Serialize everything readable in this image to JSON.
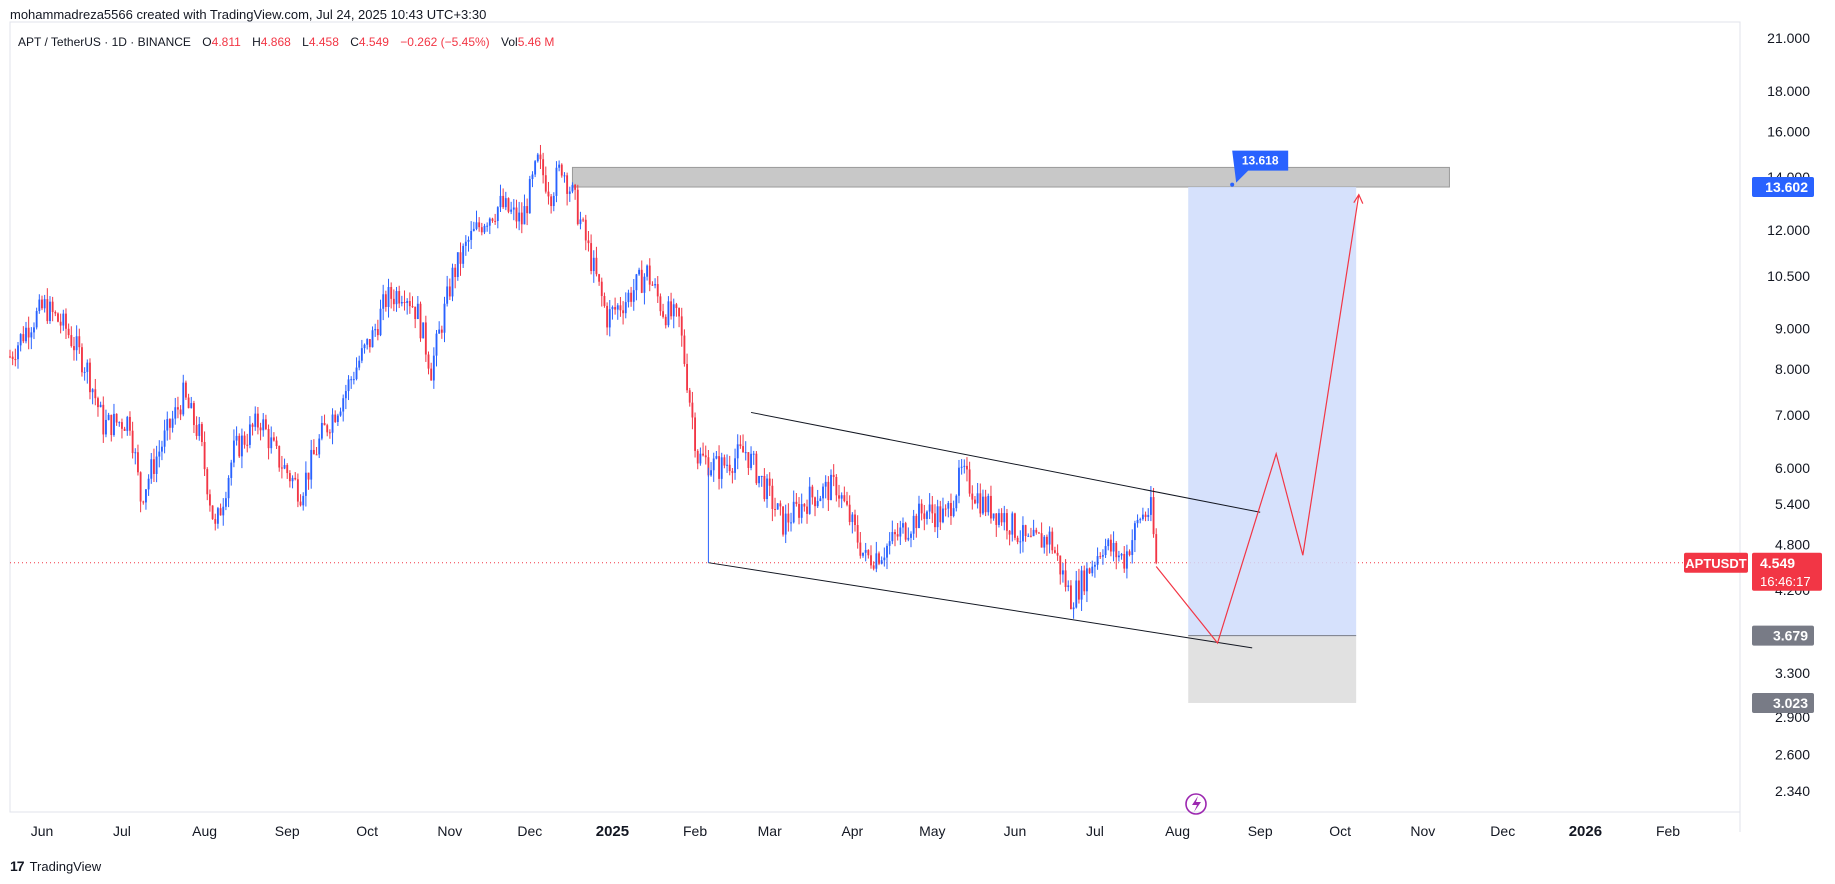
{
  "header": {
    "text": "mohammadreza5566 created with TradingView.com, Jul 24, 2025 10:43 UTC+3:30"
  },
  "legend": {
    "symbol": "APT / TetherUS · 1D · BINANCE",
    "o_label": "O",
    "o_value": "4.811",
    "h_label": "H",
    "h_value": "4.868",
    "l_label": "L",
    "l_value": "4.458",
    "c_label": "C",
    "c_value": "4.549",
    "change": "−0.262 (−5.45%)",
    "vol_label": "Vol",
    "vol_value": "5.46 M"
  },
  "footer": {
    "brand": "TradingView",
    "logo": "17"
  },
  "colors": {
    "up": "#2962ff",
    "down": "#f23645",
    "target_zone": "#cfdcfc",
    "stop_zone": "#e1e1e1",
    "resistance": "#c8c8c8",
    "projection": "#f23645",
    "label_blue": "#2962ff",
    "label_gray": "#787b86"
  },
  "chart_data": {
    "type": "candlestick",
    "symbol": "APTUSDT",
    "y_scale": "log",
    "ylim": [
      2.2,
      22.0
    ],
    "y_ticks": [
      2.34,
      2.6,
      2.9,
      3.3,
      3.679,
      4.2,
      4.8,
      5.4,
      6.0,
      7.0,
      8.0,
      9.0,
      10.5,
      12.0,
      14.0,
      16.0,
      18.0,
      21.0
    ],
    "y_tick_labels": [
      "2.340",
      "2.600",
      "2.900",
      "3.300",
      "",
      "4.200",
      "4.800",
      "5.400",
      "6.000",
      "7.000",
      "8.000",
      "9.000",
      "10.500",
      "12.000",
      "14.000",
      "16.000",
      "18.000",
      "21.000"
    ],
    "xlim": [
      "2024-05-20",
      "2026-02-28"
    ],
    "x_ticks": [
      {
        "date": "2024-06-01",
        "label": "Jun",
        "bold": false
      },
      {
        "date": "2024-07-01",
        "label": "Jul",
        "bold": false
      },
      {
        "date": "2024-08-01",
        "label": "Aug",
        "bold": false
      },
      {
        "date": "2024-09-01",
        "label": "Sep",
        "bold": false
      },
      {
        "date": "2024-10-01",
        "label": "Oct",
        "bold": false
      },
      {
        "date": "2024-11-01",
        "label": "Nov",
        "bold": false
      },
      {
        "date": "2024-12-01",
        "label": "Dec",
        "bold": false
      },
      {
        "date": "2025-01-01",
        "label": "2025",
        "bold": true
      },
      {
        "date": "2025-02-01",
        "label": "Feb",
        "bold": false
      },
      {
        "date": "2025-03-01",
        "label": "Mar",
        "bold": false
      },
      {
        "date": "2025-04-01",
        "label": "Apr",
        "bold": false
      },
      {
        "date": "2025-05-01",
        "label": "May",
        "bold": false
      },
      {
        "date": "2025-06-01",
        "label": "Jun",
        "bold": false
      },
      {
        "date": "2025-07-01",
        "label": "Jul",
        "bold": false
      },
      {
        "date": "2025-08-01",
        "label": "Aug",
        "bold": false
      },
      {
        "date": "2025-09-01",
        "label": "Sep",
        "bold": false
      },
      {
        "date": "2025-10-01",
        "label": "Oct",
        "bold": false
      },
      {
        "date": "2025-11-01",
        "label": "Nov",
        "bold": false
      },
      {
        "date": "2025-12-01",
        "label": "Dec",
        "bold": false
      },
      {
        "date": "2026-01-01",
        "label": "2026",
        "bold": true
      },
      {
        "date": "2026-02-01",
        "label": "Feb",
        "bold": false
      }
    ],
    "price_path": [
      [
        "2024-05-20",
        8.3
      ],
      [
        "2024-05-27",
        9.1
      ],
      [
        "2024-06-02",
        9.6
      ],
      [
        "2024-06-10",
        9.0
      ],
      [
        "2024-06-18",
        8.0
      ],
      [
        "2024-06-24",
        6.8
      ],
      [
        "2024-07-04",
        6.9
      ],
      [
        "2024-07-08",
        5.5
      ],
      [
        "2024-07-14",
        6.2
      ],
      [
        "2024-07-24",
        7.4
      ],
      [
        "2024-07-30",
        6.6
      ],
      [
        "2024-08-05",
        5.0
      ],
      [
        "2024-08-12",
        6.3
      ],
      [
        "2024-08-22",
        6.9
      ],
      [
        "2024-08-28",
        6.2
      ],
      [
        "2024-09-06",
        5.6
      ],
      [
        "2024-09-14",
        6.6
      ],
      [
        "2024-09-22",
        7.4
      ],
      [
        "2024-09-28",
        8.2
      ],
      [
        "2024-10-03",
        8.8
      ],
      [
        "2024-10-08",
        9.8
      ],
      [
        "2024-10-15",
        10.1
      ],
      [
        "2024-10-20",
        9.4
      ],
      [
        "2024-10-25",
        8.0
      ],
      [
        "2024-11-02",
        10.5
      ],
      [
        "2024-11-08",
        11.6
      ],
      [
        "2024-11-14",
        12.4
      ],
      [
        "2024-11-20",
        12.9
      ],
      [
        "2024-11-28",
        12.3
      ],
      [
        "2024-12-04",
        14.6
      ],
      [
        "2024-12-09",
        13.4
      ],
      [
        "2024-12-13",
        14.5
      ],
      [
        "2024-12-18",
        13.0
      ],
      [
        "2024-12-24",
        11.0
      ],
      [
        "2024-12-30",
        9.3
      ],
      [
        "2025-01-06",
        9.8
      ],
      [
        "2025-01-14",
        10.6
      ],
      [
        "2025-01-20",
        9.5
      ],
      [
        "2025-01-26",
        9.2
      ],
      [
        "2025-02-02",
        6.2
      ],
      [
        "2025-02-10",
        6.0
      ],
      [
        "2025-02-20",
        6.3
      ],
      [
        "2025-02-28",
        5.6
      ],
      [
        "2025-03-06",
        5.1
      ],
      [
        "2025-03-16",
        5.5
      ],
      [
        "2025-03-26",
        5.7
      ],
      [
        "2025-04-06",
        4.6
      ],
      [
        "2025-04-12",
        4.7
      ],
      [
        "2025-04-20",
        5.0
      ],
      [
        "2025-04-28",
        5.3
      ],
      [
        "2025-05-06",
        5.2
      ],
      [
        "2025-05-12",
        5.9
      ],
      [
        "2025-05-20",
        5.4
      ],
      [
        "2025-05-28",
        5.2
      ],
      [
        "2025-06-06",
        4.8
      ],
      [
        "2025-06-14",
        4.9
      ],
      [
        "2025-06-22",
        4.1
      ],
      [
        "2025-06-26",
        4.3
      ],
      [
        "2025-07-04",
        4.8
      ],
      [
        "2025-07-12",
        4.6
      ],
      [
        "2025-07-18",
        5.2
      ],
      [
        "2025-07-22",
        5.3
      ],
      [
        "2025-07-24",
        4.549
      ]
    ],
    "last_price": 4.549,
    "last_price_label": "APTUSDT",
    "countdown": "16:46:17",
    "drawings": {
      "channel_upper": [
        [
          "2025-02-22",
          7.05
        ],
        [
          "2025-09-01",
          5.27
        ]
      ],
      "channel_lower": [
        [
          "2025-02-06",
          4.55
        ],
        [
          "2025-08-29",
          3.55
        ]
      ],
      "resistance_zone": {
        "from": "2024-12-17",
        "to": "2025-11-11",
        "low": 13.6,
        "high": 14.4
      },
      "target_zone": {
        "from": "2025-08-05",
        "to": "2025-10-07",
        "low": 3.679,
        "high": 13.602
      },
      "stop_zone": {
        "from": "2025-08-05",
        "to": "2025-10-07",
        "low": 3.023,
        "high": 3.679
      },
      "projection": [
        [
          "2025-07-24",
          4.5
        ],
        [
          "2025-08-16",
          3.6
        ],
        [
          "2025-09-07",
          6.25
        ],
        [
          "2025-09-17",
          4.65
        ],
        [
          "2025-10-08",
          13.3
        ]
      ],
      "target_price": 13.618
    },
    "price_labels": {
      "target": "13.602",
      "entry": "3.679",
      "stop": "3.023",
      "callout": "13.618"
    }
  }
}
